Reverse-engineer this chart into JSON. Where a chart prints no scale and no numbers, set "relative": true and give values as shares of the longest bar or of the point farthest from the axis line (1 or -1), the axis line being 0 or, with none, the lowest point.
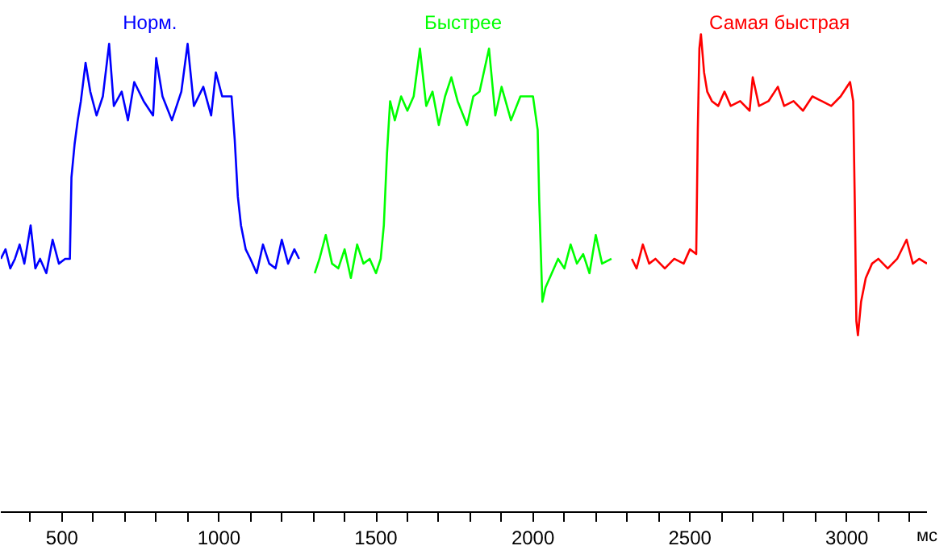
{
  "chart_data": {
    "type": "line",
    "relative": true,
    "xlabel": "мс",
    "xlim": [
      305,
      3255
    ],
    "xticks": [
      {
        "value": 400,
        "label": null
      },
      500,
      {
        "value": 600,
        "label": null
      },
      {
        "value": 700,
        "label": null
      },
      {
        "value": 800,
        "label": null
      },
      {
        "value": 900,
        "label": null
      },
      1000,
      {
        "value": 1100,
        "label": null
      },
      {
        "value": 1200,
        "label": null
      },
      {
        "value": 1300,
        "label": null
      },
      {
        "value": 1400,
        "label": null
      },
      1500,
      {
        "value": 1600,
        "label": null
      },
      {
        "value": 1700,
        "label": null
      },
      {
        "value": 1800,
        "label": null
      },
      {
        "value": 1900,
        "label": null
      },
      2000,
      {
        "value": 2100,
        "label": null
      },
      {
        "value": 2200,
        "label": null
      },
      {
        "value": 2300,
        "label": null
      },
      {
        "value": 2400,
        "label": null
      },
      2500,
      {
        "value": 2600,
        "label": null
      },
      {
        "value": 2700,
        "label": null
      },
      {
        "value": 2800,
        "label": null
      },
      {
        "value": 2900,
        "label": null
      },
      3000,
      {
        "value": 3100,
        "label": null
      },
      {
        "value": 3200,
        "label": null
      }
    ],
    "grid": false,
    "legend": false,
    "marker": "none",
    "line_style": "solid",
    "tick_labels": "x",
    "series": [
      {
        "name": "Норм.",
        "color": "#0000ff",
        "x": [
          305,
          320,
          335,
          350,
          365,
          380,
          400,
          415,
          430,
          450,
          470,
          490,
          510,
          525,
          530,
          540,
          550,
          560,
          575,
          590,
          610,
          630,
          650,
          665,
          690,
          710,
          730,
          760,
          790,
          800,
          820,
          850,
          880,
          900,
          920,
          950,
          975,
          990,
          1010,
          1040,
          1050,
          1060,
          1070,
          1085,
          1100,
          1120,
          1140,
          1160,
          1180,
          1200,
          1220,
          1240,
          1255
        ],
        "values": [
          0.53,
          0.55,
          0.51,
          0.53,
          0.56,
          0.52,
          0.6,
          0.51,
          0.53,
          0.5,
          0.57,
          0.52,
          0.53,
          0.53,
          0.7,
          0.77,
          0.82,
          0.86,
          0.94,
          0.88,
          0.83,
          0.87,
          0.98,
          0.85,
          0.88,
          0.82,
          0.9,
          0.86,
          0.83,
          0.95,
          0.87,
          0.82,
          0.88,
          0.98,
          0.85,
          0.89,
          0.83,
          0.92,
          0.87,
          0.87,
          0.78,
          0.66,
          0.6,
          0.55,
          0.53,
          0.5,
          0.56,
          0.52,
          0.51,
          0.57,
          0.52,
          0.55,
          0.53
        ]
      },
      {
        "name": "Быстрее",
        "color": "#00ff00",
        "x": [
          1305,
          1320,
          1340,
          1360,
          1380,
          1400,
          1420,
          1440,
          1460,
          1480,
          1500,
          1515,
          1525,
          1535,
          1545,
          1560,
          1580,
          1600,
          1620,
          1640,
          1660,
          1680,
          1700,
          1720,
          1740,
          1760,
          1790,
          1810,
          1830,
          1860,
          1880,
          1900,
          1930,
          1960,
          2000,
          2015,
          2020,
          2030,
          2040,
          2060,
          2080,
          2100,
          2120,
          2140,
          2160,
          2180,
          2200,
          2220,
          2250
        ],
        "values": [
          0.5,
          0.53,
          0.58,
          0.52,
          0.51,
          0.55,
          0.49,
          0.56,
          0.52,
          0.53,
          0.5,
          0.53,
          0.6,
          0.75,
          0.86,
          0.82,
          0.87,
          0.84,
          0.87,
          0.97,
          0.85,
          0.88,
          0.81,
          0.87,
          0.91,
          0.86,
          0.81,
          0.87,
          0.88,
          0.97,
          0.83,
          0.89,
          0.82,
          0.87,
          0.87,
          0.8,
          0.65,
          0.44,
          0.47,
          0.5,
          0.53,
          0.51,
          0.56,
          0.52,
          0.54,
          0.5,
          0.58,
          0.52,
          0.53
        ]
      },
      {
        "name": "Самая быстрая",
        "color": "#ff0000",
        "x": [
          2315,
          2330,
          2350,
          2370,
          2390,
          2420,
          2450,
          2480,
          2500,
          2520,
          2525,
          2530,
          2535,
          2545,
          2555,
          2570,
          2590,
          2610,
          2630,
          2660,
          2690,
          2700,
          2720,
          2750,
          2780,
          2800,
          2830,
          2860,
          2890,
          2920,
          2950,
          2980,
          3010,
          3020,
          3025,
          3030,
          3035,
          3045,
          3060,
          3080,
          3100,
          3130,
          3160,
          3190,
          3210,
          3230,
          3255
        ],
        "values": [
          0.53,
          0.51,
          0.56,
          0.52,
          0.53,
          0.51,
          0.53,
          0.52,
          0.55,
          0.54,
          0.8,
          0.97,
          1.0,
          0.92,
          0.88,
          0.86,
          0.85,
          0.88,
          0.85,
          0.86,
          0.84,
          0.91,
          0.85,
          0.86,
          0.89,
          0.85,
          0.86,
          0.84,
          0.87,
          0.86,
          0.85,
          0.87,
          0.9,
          0.86,
          0.65,
          0.4,
          0.37,
          0.44,
          0.49,
          0.52,
          0.53,
          0.51,
          0.53,
          0.57,
          0.52,
          0.53,
          0.52
        ]
      }
    ]
  }
}
